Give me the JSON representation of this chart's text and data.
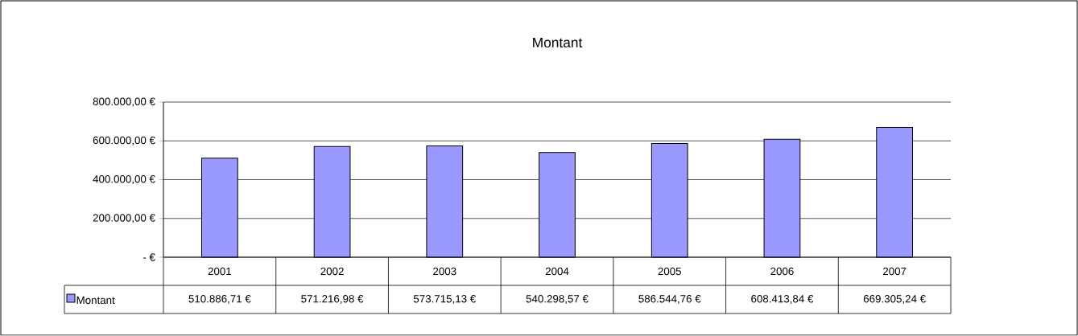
{
  "chart_data": {
    "type": "bar",
    "title": "Montant",
    "categories": [
      "2001",
      "2002",
      "2003",
      "2004",
      "2005",
      "2006",
      "2007"
    ],
    "series": [
      {
        "name": "Montant",
        "color": "#9999ff",
        "values": [
          510886.71,
          571216.98,
          573715.13,
          540298.57,
          586544.76,
          608413.84,
          669305.24
        ],
        "value_labels": [
          "510.886,71 €",
          "571.216,98 €",
          "573.715,13 €",
          "540.298,57 €",
          "586.544,76 €",
          "608.413,84 €",
          "669.305,24 €"
        ]
      }
    ],
    "ylim": [
      0,
      800000
    ],
    "yticks": [
      {
        "value": 0,
        "label": "- €"
      },
      {
        "value": 200000,
        "label": "200.000,00 €"
      },
      {
        "value": 400000,
        "label": "400.000,00 €"
      },
      {
        "value": 600000,
        "label": "600.000,00 €"
      },
      {
        "value": 800000,
        "label": "800.000,00 €"
      }
    ],
    "grid": "y",
    "legend": "bottom"
  }
}
